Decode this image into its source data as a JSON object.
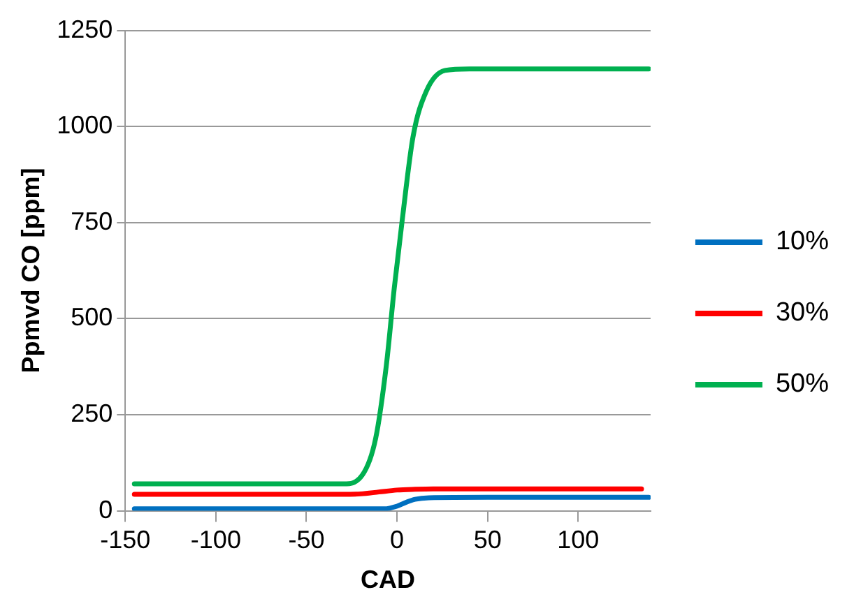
{
  "chart_data": {
    "type": "line",
    "xlabel": "CAD",
    "ylabel": "Ppmvd CO [ppm]",
    "xlim": [
      -150,
      140
    ],
    "ylim": [
      0,
      1250
    ],
    "xticks": [
      -150,
      -100,
      -50,
      0,
      50,
      100
    ],
    "yticks": [
      0,
      250,
      500,
      750,
      1000,
      1250
    ],
    "grid": "y",
    "legend": "right",
    "marker": "none",
    "line_style": "solid",
    "series": [
      {
        "name": "10%",
        "color": "#0070c0",
        "x": [
          -145,
          -30,
          -7,
          0,
          5,
          10,
          17.6,
          50,
          100,
          139
        ],
        "values": [
          5,
          5,
          5,
          12,
          22,
          30,
          34,
          35,
          35,
          35
        ]
      },
      {
        "name": "30%",
        "color": "#ff0000",
        "x": [
          -145,
          -30,
          -20,
          -10,
          0,
          10,
          20,
          50,
          100,
          135
        ],
        "values": [
          43,
          43,
          44,
          49,
          54,
          56,
          57,
          57,
          57,
          57
        ]
      },
      {
        "name": "50%",
        "color": "#00b050",
        "x": [
          -145,
          -29.4,
          -19,
          -11.8,
          -5.9,
          -1.5,
          2.9,
          8.8,
          16.2,
          26.5,
          40,
          100,
          139
        ],
        "values": [
          70,
          70,
          94,
          188,
          378,
          580,
          757,
          972,
          1092,
          1146,
          1150,
          1150,
          1150
        ]
      }
    ]
  }
}
